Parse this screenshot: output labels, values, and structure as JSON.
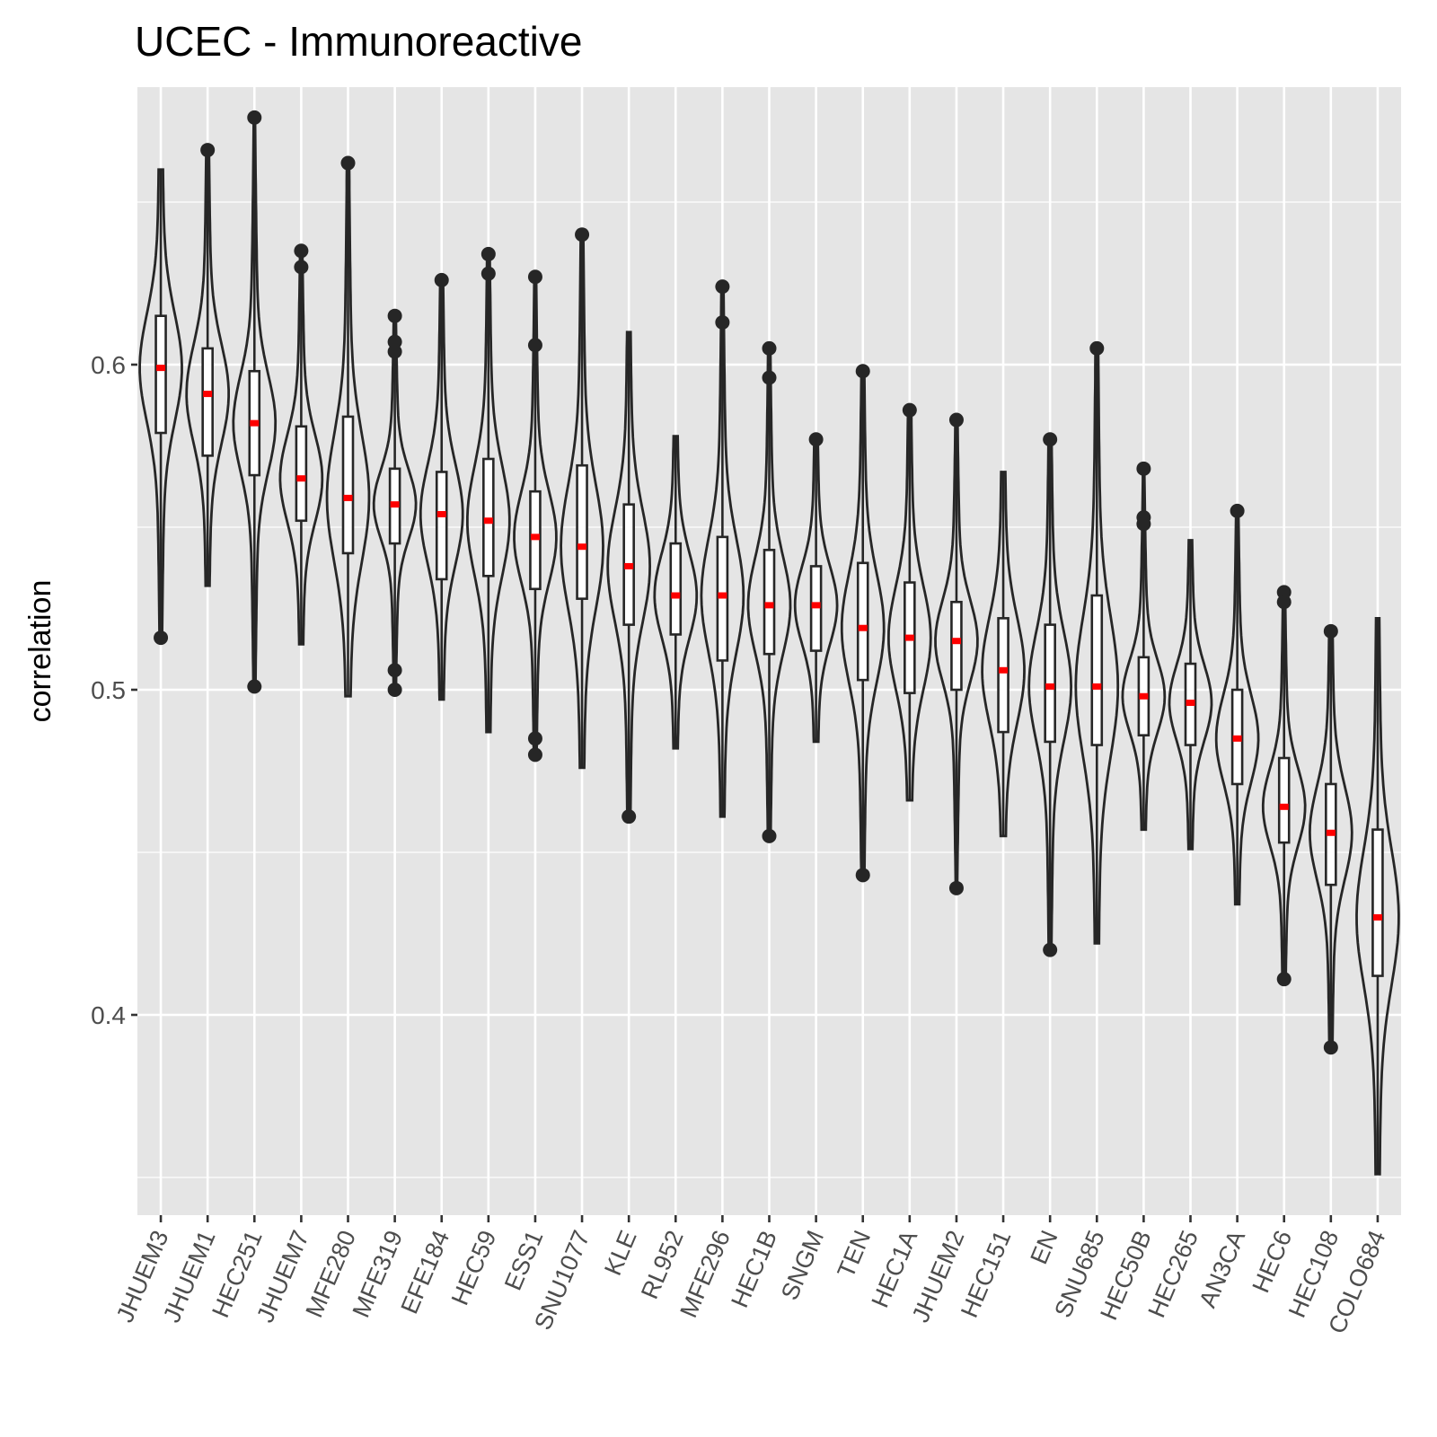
{
  "chart_data": {
    "type": "violin",
    "title": "UCEC - Immunoreactive",
    "xlabel": "",
    "ylabel": "correlation",
    "ylim": [
      0.35,
      0.68
    ],
    "yticks": [
      0.4,
      0.5,
      0.6
    ],
    "ytick_labels": [
      "0.4",
      "0.5",
      "0.6"
    ],
    "grid": true,
    "median_color": "#ff0000",
    "panel_color": "#e5e5e5",
    "categories": [
      "JHUEM3",
      "JHUEM1",
      "HEC251",
      "JHUEM7",
      "MFE280",
      "MFE319",
      "EFE184",
      "HEC59",
      "ESS1",
      "SNU1077",
      "KLE",
      "RL952",
      "MFE296",
      "HEC1B",
      "SNGM",
      "TEN",
      "HEC1A",
      "JHUEM2",
      "HEC151",
      "EN",
      "SNU685",
      "HEC50B",
      "HEC265",
      "AN3CA",
      "HEC6",
      "HEC108",
      "COLO684"
    ],
    "series": [
      {
        "category": "JHUEM3",
        "min": 0.516,
        "q1": 0.579,
        "median": 0.599,
        "q3": 0.615,
        "max": 0.66,
        "outliers": [
          0.516
        ]
      },
      {
        "category": "JHUEM1",
        "min": 0.532,
        "q1": 0.572,
        "median": 0.591,
        "q3": 0.605,
        "max": 0.666,
        "outliers": [
          0.666
        ]
      },
      {
        "category": "HEC251",
        "min": 0.501,
        "q1": 0.566,
        "median": 0.582,
        "q3": 0.598,
        "max": 0.676,
        "outliers": [
          0.676,
          0.501
        ]
      },
      {
        "category": "JHUEM7",
        "min": 0.514,
        "q1": 0.552,
        "median": 0.565,
        "q3": 0.581,
        "max": 0.635,
        "outliers": [
          0.635,
          0.63
        ]
      },
      {
        "category": "MFE280",
        "min": 0.498,
        "q1": 0.542,
        "median": 0.559,
        "q3": 0.584,
        "max": 0.662,
        "outliers": [
          0.662
        ]
      },
      {
        "category": "MFE319",
        "min": 0.5,
        "q1": 0.545,
        "median": 0.557,
        "q3": 0.568,
        "max": 0.615,
        "outliers": [
          0.615,
          0.607,
          0.604,
          0.506,
          0.5
        ]
      },
      {
        "category": "EFE184",
        "min": 0.497,
        "q1": 0.534,
        "median": 0.554,
        "q3": 0.567,
        "max": 0.626,
        "outliers": [
          0.626
        ]
      },
      {
        "category": "HEC59",
        "min": 0.487,
        "q1": 0.535,
        "median": 0.552,
        "q3": 0.571,
        "max": 0.634,
        "outliers": [
          0.634,
          0.628
        ]
      },
      {
        "category": "ESS1",
        "min": 0.48,
        "q1": 0.531,
        "median": 0.547,
        "q3": 0.561,
        "max": 0.627,
        "outliers": [
          0.627,
          0.606,
          0.485,
          0.48
        ]
      },
      {
        "category": "SNU1077",
        "min": 0.476,
        "q1": 0.528,
        "median": 0.544,
        "q3": 0.569,
        "max": 0.64,
        "outliers": [
          0.64
        ]
      },
      {
        "category": "KLE",
        "min": 0.461,
        "q1": 0.52,
        "median": 0.538,
        "q3": 0.557,
        "max": 0.61,
        "outliers": [
          0.461
        ]
      },
      {
        "category": "RL952",
        "min": 0.482,
        "q1": 0.517,
        "median": 0.529,
        "q3": 0.545,
        "max": 0.578,
        "outliers": []
      },
      {
        "category": "MFE296",
        "min": 0.461,
        "q1": 0.509,
        "median": 0.529,
        "q3": 0.547,
        "max": 0.624,
        "outliers": [
          0.624,
          0.613
        ]
      },
      {
        "category": "HEC1B",
        "min": 0.455,
        "q1": 0.511,
        "median": 0.526,
        "q3": 0.543,
        "max": 0.605,
        "outliers": [
          0.605,
          0.596,
          0.455
        ]
      },
      {
        "category": "SNGM",
        "min": 0.484,
        "q1": 0.512,
        "median": 0.526,
        "q3": 0.538,
        "max": 0.577,
        "outliers": [
          0.577
        ]
      },
      {
        "category": "TEN",
        "min": 0.443,
        "q1": 0.503,
        "median": 0.519,
        "q3": 0.539,
        "max": 0.598,
        "outliers": [
          0.598,
          0.443
        ]
      },
      {
        "category": "HEC1A",
        "min": 0.466,
        "q1": 0.499,
        "median": 0.516,
        "q3": 0.533,
        "max": 0.586,
        "outliers": [
          0.586
        ]
      },
      {
        "category": "JHUEM2",
        "min": 0.439,
        "q1": 0.5,
        "median": 0.515,
        "q3": 0.527,
        "max": 0.583,
        "outliers": [
          0.583,
          0.439
        ]
      },
      {
        "category": "HEC151",
        "min": 0.455,
        "q1": 0.487,
        "median": 0.506,
        "q3": 0.522,
        "max": 0.567,
        "outliers": []
      },
      {
        "category": "EN",
        "min": 0.42,
        "q1": 0.484,
        "median": 0.501,
        "q3": 0.52,
        "max": 0.577,
        "outliers": [
          0.577,
          0.42
        ]
      },
      {
        "category": "SNU685",
        "min": 0.422,
        "q1": 0.483,
        "median": 0.501,
        "q3": 0.529,
        "max": 0.605,
        "outliers": [
          0.605
        ]
      },
      {
        "category": "HEC50B",
        "min": 0.457,
        "q1": 0.486,
        "median": 0.498,
        "q3": 0.51,
        "max": 0.568,
        "outliers": [
          0.568,
          0.553,
          0.551
        ]
      },
      {
        "category": "HEC265",
        "min": 0.451,
        "q1": 0.483,
        "median": 0.496,
        "q3": 0.508,
        "max": 0.546,
        "outliers": []
      },
      {
        "category": "AN3CA",
        "min": 0.434,
        "q1": 0.471,
        "median": 0.485,
        "q3": 0.5,
        "max": 0.555,
        "outliers": [
          0.555
        ]
      },
      {
        "category": "HEC6",
        "min": 0.411,
        "q1": 0.453,
        "median": 0.464,
        "q3": 0.479,
        "max": 0.53,
        "outliers": [
          0.53,
          0.527,
          0.411
        ]
      },
      {
        "category": "HEC108",
        "min": 0.39,
        "q1": 0.44,
        "median": 0.456,
        "q3": 0.471,
        "max": 0.518,
        "outliers": [
          0.518,
          0.39
        ]
      },
      {
        "category": "COLO684",
        "min": 0.351,
        "q1": 0.412,
        "median": 0.43,
        "q3": 0.457,
        "max": 0.522,
        "outliers": []
      }
    ]
  }
}
